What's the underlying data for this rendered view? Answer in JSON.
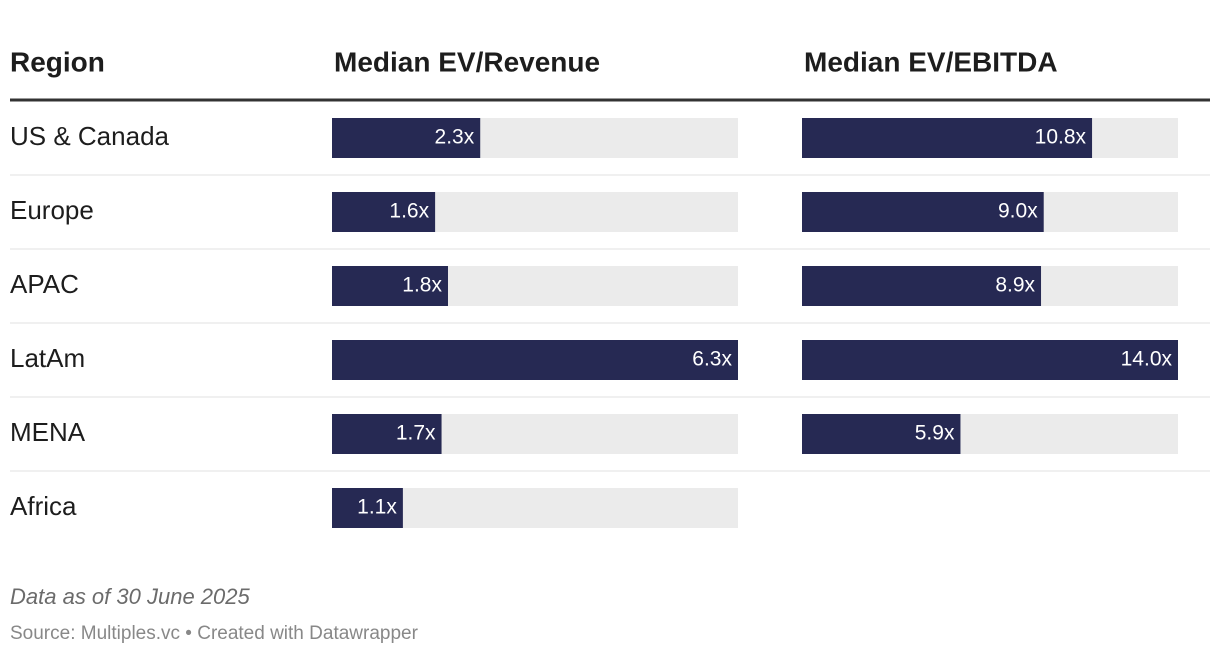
{
  "chart_data": {
    "type": "bar",
    "category_label": "Region",
    "categories": [
      "US & Canada",
      "Europe",
      "APAC",
      "LatAm",
      "MENA",
      "Africa"
    ],
    "series": [
      {
        "name": "Median EV/Revenue",
        "color": "#262953",
        "xlim": [
          0,
          6.3
        ],
        "values": [
          2.3,
          1.6,
          1.8,
          6.3,
          1.7,
          1.1
        ],
        "value_labels": [
          "2.3x",
          "1.6x",
          "1.8x",
          "6.3x",
          "1.7x",
          "1.1x"
        ]
      },
      {
        "name": "Median EV/EBITDA",
        "color": "#262953",
        "xlim": [
          0,
          14.0
        ],
        "values": [
          10.8,
          9.0,
          8.9,
          14.0,
          5.9,
          null
        ],
        "value_labels": [
          "10.8x",
          "9.0x",
          "8.9x",
          "14.0x",
          "5.9x",
          null
        ]
      }
    ],
    "note": "Data as of 30 June 2025",
    "source": "Source: Multiples.vc • Created with Datawrapper"
  }
}
